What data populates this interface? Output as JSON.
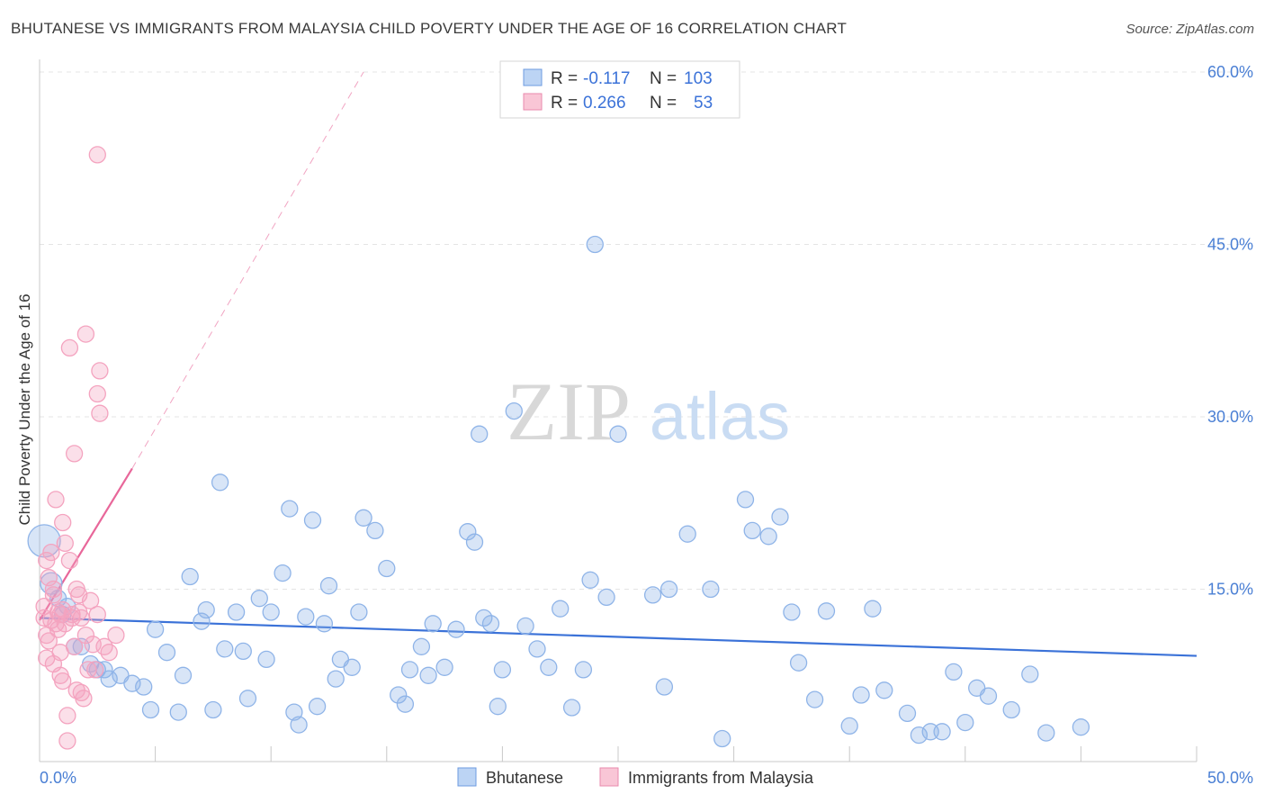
{
  "chart_data": {
    "type": "scatter",
    "title": "BHUTANESE VS IMMIGRANTS FROM MALAYSIA CHILD POVERTY UNDER THE AGE OF 16 CORRELATION CHART",
    "source": "Source: ZipAtlas.com",
    "ylabel": "Child Poverty Under the Age of 16",
    "xlabel": "",
    "xlim": [
      0,
      50
    ],
    "ylim": [
      0,
      60
    ],
    "x_tick_labels": [
      "0.0%",
      "50.0%"
    ],
    "y_ticks": [
      15,
      30,
      45,
      60
    ],
    "y_tick_labels": [
      "15.0%",
      "30.0%",
      "45.0%",
      "60.0%"
    ],
    "grid": true,
    "watermark": "ZIPatlas",
    "legend_position": "bottom-center",
    "stats_box": {
      "r_label": "R =",
      "n_label": "N =",
      "rows": [
        {
          "r": "-0.117",
          "n": "103"
        },
        {
          "r": "0.266",
          "n": "53"
        }
      ]
    },
    "series": [
      {
        "name": "Bhutanese",
        "color": "#8fb4e8",
        "line_color": "#3b72d8",
        "trend": {
          "x0": 0,
          "y0": 12.5,
          "x1": 50,
          "y1": 9.2
        },
        "points": [
          [
            0.2,
            19.2
          ],
          [
            0.5,
            15.5
          ],
          [
            0.8,
            14.2
          ],
          [
            1.0,
            12.8
          ],
          [
            1.2,
            13.5
          ],
          [
            1.5,
            10.0
          ],
          [
            1.8,
            10.0
          ],
          [
            2.2,
            8.5
          ],
          [
            2.5,
            8.0
          ],
          [
            2.8,
            8.0
          ],
          [
            3.0,
            7.2
          ],
          [
            3.5,
            7.5
          ],
          [
            4.0,
            6.8
          ],
          [
            4.5,
            6.5
          ],
          [
            4.8,
            4.5
          ],
          [
            5.0,
            11.5
          ],
          [
            5.5,
            9.5
          ],
          [
            6.0,
            4.3
          ],
          [
            6.2,
            7.5
          ],
          [
            6.5,
            16.1
          ],
          [
            7.0,
            12.2
          ],
          [
            7.2,
            13.2
          ],
          [
            7.5,
            4.5
          ],
          [
            7.8,
            24.3
          ],
          [
            8.0,
            9.8
          ],
          [
            8.5,
            13.0
          ],
          [
            8.8,
            9.6
          ],
          [
            9.0,
            5.5
          ],
          [
            9.5,
            14.2
          ],
          [
            9.8,
            8.9
          ],
          [
            10.0,
            13.0
          ],
          [
            10.5,
            16.4
          ],
          [
            10.8,
            22.0
          ],
          [
            11.0,
            4.3
          ],
          [
            11.2,
            3.2
          ],
          [
            11.5,
            12.6
          ],
          [
            11.8,
            21.0
          ],
          [
            12.0,
            4.8
          ],
          [
            12.3,
            12.0
          ],
          [
            12.5,
            15.3
          ],
          [
            12.8,
            7.2
          ],
          [
            13.0,
            8.9
          ],
          [
            13.5,
            8.2
          ],
          [
            13.8,
            13.0
          ],
          [
            14.0,
            21.2
          ],
          [
            14.5,
            20.1
          ],
          [
            15.0,
            16.8
          ],
          [
            15.5,
            5.8
          ],
          [
            15.8,
            5.0
          ],
          [
            16.0,
            8.0
          ],
          [
            16.5,
            10.0
          ],
          [
            16.8,
            7.5
          ],
          [
            17.0,
            12.0
          ],
          [
            17.5,
            8.2
          ],
          [
            18.0,
            11.5
          ],
          [
            18.5,
            20.0
          ],
          [
            18.8,
            19.1
          ],
          [
            19.0,
            28.5
          ],
          [
            19.2,
            12.5
          ],
          [
            19.5,
            12.0
          ],
          [
            19.8,
            4.8
          ],
          [
            20.0,
            8.0
          ],
          [
            20.5,
            30.5
          ],
          [
            21.0,
            11.8
          ],
          [
            21.5,
            9.8
          ],
          [
            22.0,
            8.2
          ],
          [
            22.5,
            13.3
          ],
          [
            23.0,
            4.7
          ],
          [
            23.5,
            8.0
          ],
          [
            23.8,
            15.8
          ],
          [
            24.0,
            45.0
          ],
          [
            24.5,
            14.3
          ],
          [
            25.0,
            28.5
          ],
          [
            26.5,
            14.5
          ],
          [
            27.0,
            6.5
          ],
          [
            27.2,
            15.0
          ],
          [
            28.0,
            19.8
          ],
          [
            29.0,
            15.0
          ],
          [
            29.5,
            2.0
          ],
          [
            30.5,
            22.8
          ],
          [
            30.8,
            20.1
          ],
          [
            31.5,
            19.6
          ],
          [
            32.0,
            21.3
          ],
          [
            32.5,
            13.0
          ],
          [
            32.8,
            8.6
          ],
          [
            33.5,
            5.4
          ],
          [
            34.0,
            13.1
          ],
          [
            35.0,
            3.1
          ],
          [
            35.5,
            5.8
          ],
          [
            36.0,
            13.3
          ],
          [
            36.5,
            6.2
          ],
          [
            37.5,
            4.2
          ],
          [
            38.0,
            2.3
          ],
          [
            38.5,
            2.6
          ],
          [
            39.0,
            2.6
          ],
          [
            39.5,
            7.8
          ],
          [
            40.0,
            3.4
          ],
          [
            40.5,
            6.4
          ],
          [
            41.0,
            5.7
          ],
          [
            42.0,
            4.5
          ],
          [
            42.8,
            7.6
          ],
          [
            43.5,
            2.5
          ],
          [
            45.0,
            3.0
          ]
        ]
      },
      {
        "name": "Immigrants from Malaysia",
        "color": "#f4a3bf",
        "line_color": "#e8679a",
        "trend": {
          "x0": 0,
          "y0": 12.3,
          "x1": 4.0,
          "y1": 25.5
        },
        "trend_extension": {
          "x0": 4.0,
          "y0": 25.5,
          "x1": 14.0,
          "y1": 60.0
        },
        "points": [
          [
            0.2,
            13.5
          ],
          [
            0.2,
            12.5
          ],
          [
            0.3,
            11.0
          ],
          [
            0.3,
            17.5
          ],
          [
            0.4,
            16.0
          ],
          [
            0.4,
            10.5
          ],
          [
            0.5,
            12.3
          ],
          [
            0.5,
            18.2
          ],
          [
            0.6,
            14.5
          ],
          [
            0.6,
            8.5
          ],
          [
            0.7,
            22.8
          ],
          [
            0.7,
            12.0
          ],
          [
            0.8,
            13.0
          ],
          [
            0.8,
            11.5
          ],
          [
            0.9,
            7.5
          ],
          [
            0.9,
            12.8
          ],
          [
            1.0,
            20.8
          ],
          [
            1.0,
            13.2
          ],
          [
            1.0,
            7.0
          ],
          [
            1.1,
            19.0
          ],
          [
            1.1,
            12.0
          ],
          [
            1.2,
            4.0
          ],
          [
            1.2,
            1.8
          ],
          [
            1.3,
            36.0
          ],
          [
            1.3,
            17.5
          ],
          [
            1.4,
            12.8
          ],
          [
            1.5,
            26.8
          ],
          [
            1.5,
            10.0
          ],
          [
            1.6,
            6.2
          ],
          [
            1.6,
            15.0
          ],
          [
            1.7,
            13.0
          ],
          [
            1.8,
            12.5
          ],
          [
            1.8,
            6.0
          ],
          [
            1.9,
            5.5
          ],
          [
            2.0,
            37.2
          ],
          [
            2.0,
            11.0
          ],
          [
            2.1,
            8.0
          ],
          [
            2.2,
            14.0
          ],
          [
            2.3,
            10.2
          ],
          [
            2.5,
            32.0
          ],
          [
            2.5,
            12.8
          ],
          [
            2.6,
            30.3
          ],
          [
            2.6,
            34.0
          ],
          [
            2.8,
            10.0
          ],
          [
            3.0,
            9.5
          ],
          [
            3.3,
            11.0
          ],
          [
            2.5,
            52.8
          ],
          [
            0.9,
            9.5
          ],
          [
            1.4,
            12.5
          ],
          [
            0.6,
            15.0
          ],
          [
            1.7,
            14.5
          ],
          [
            2.4,
            8.0
          ],
          [
            0.3,
            9.0
          ]
        ]
      }
    ]
  }
}
